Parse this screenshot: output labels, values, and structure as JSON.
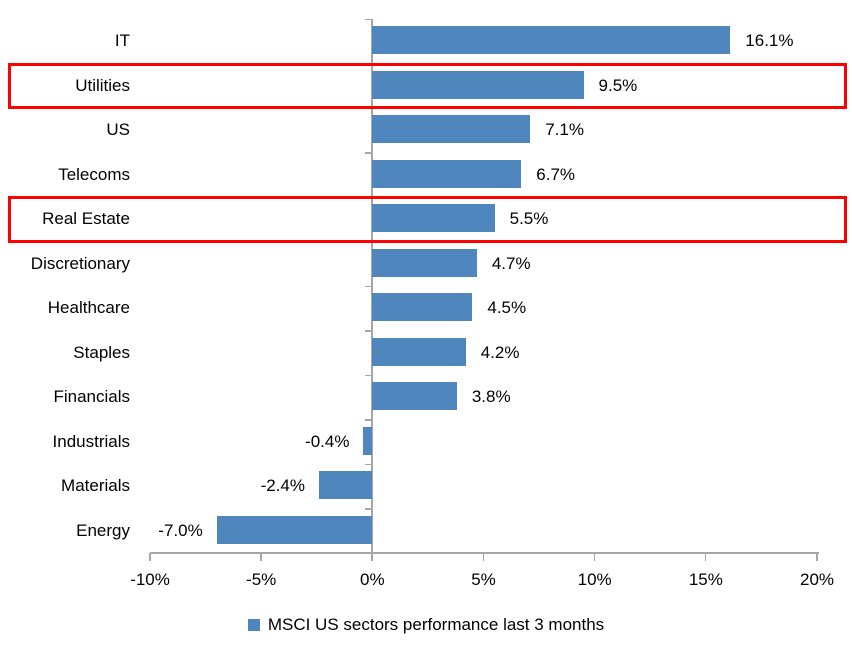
{
  "chart_data": {
    "type": "bar",
    "orientation": "horizontal",
    "categories": [
      "IT",
      "Utilities",
      "US",
      "Telecoms",
      "Real Estate",
      "Discretionary",
      "Healthcare",
      "Staples",
      "Financials",
      "Industrials",
      "Materials",
      "Energy"
    ],
    "values": [
      16.1,
      9.5,
      7.1,
      6.7,
      5.5,
      4.7,
      4.5,
      4.2,
      3.8,
      -0.4,
      -2.4,
      -7.0
    ],
    "value_labels": [
      "16.1%",
      "9.5%",
      "7.1%",
      "6.7%",
      "5.5%",
      "4.7%",
      "4.5%",
      "4.2%",
      "3.8%",
      "-0.4%",
      "-2.4%",
      "-7.0%"
    ],
    "highlighted_categories": [
      "Utilities",
      "Real Estate"
    ],
    "x_axis": {
      "min": -10,
      "max": 20,
      "tick_step": 5,
      "tick_labels": [
        "-10%",
        "-5%",
        "0%",
        "5%",
        "10%",
        "15%",
        "20%"
      ]
    },
    "legend": {
      "label": "MSCI US sectors performance last 3 months",
      "position": "bottom"
    },
    "colors": {
      "bar": "#4E86BD",
      "highlight_box": "#FF0000",
      "axis": "#A6A6A6",
      "text": "#000000",
      "background": "#FFFFFF"
    },
    "grid": false,
    "title": ""
  }
}
